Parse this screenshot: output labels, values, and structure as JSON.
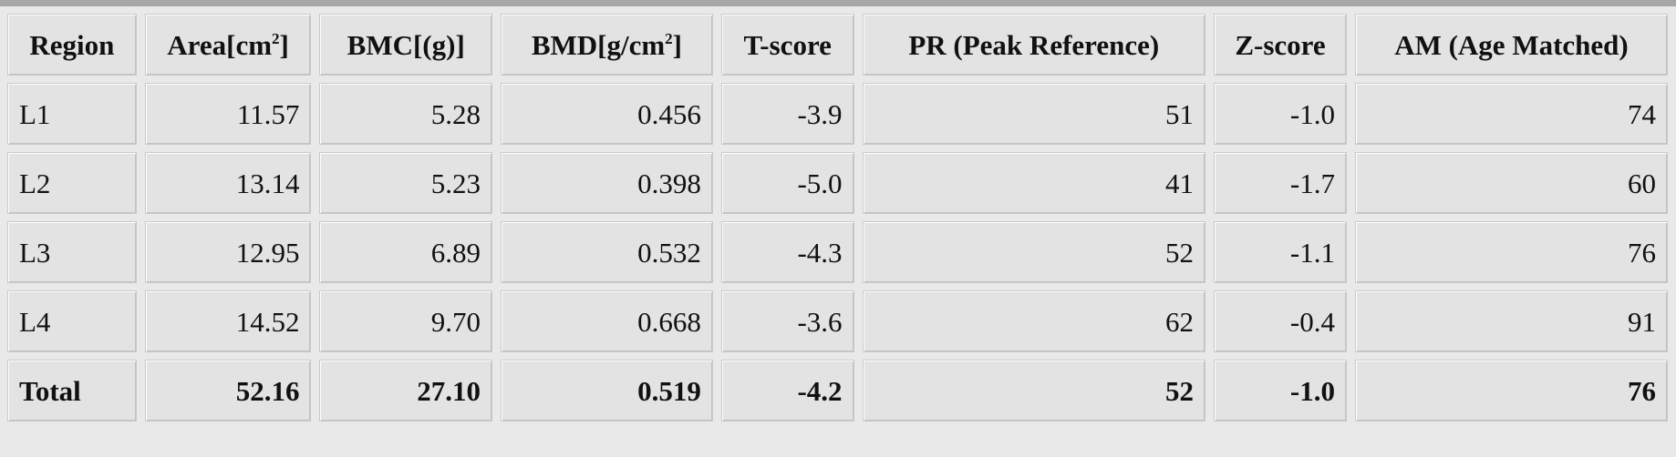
{
  "table": {
    "headers": [
      {
        "text": "Region"
      },
      {
        "text": "Area[cm",
        "sup": "2",
        "suffix": "]"
      },
      {
        "text": "BMC[(g)]"
      },
      {
        "text": "BMD[g/cm",
        "sup": "2",
        "suffix": "]"
      },
      {
        "text": "T-score"
      },
      {
        "text": "PR (Peak Reference)"
      },
      {
        "text": "Z-score"
      },
      {
        "text": "AM (Age Matched)"
      }
    ],
    "rows": [
      [
        "L1",
        "11.57",
        "5.28",
        "0.456",
        "-3.9",
        "51",
        "-1.0",
        "74"
      ],
      [
        "L2",
        "13.14",
        "5.23",
        "0.398",
        "-5.0",
        "41",
        "-1.7",
        "60"
      ],
      [
        "L3",
        "12.95",
        "6.89",
        "0.532",
        "-4.3",
        "52",
        "-1.1",
        "76"
      ],
      [
        "L4",
        "14.52",
        "9.70",
        "0.668",
        "-3.6",
        "62",
        "-0.4",
        "91"
      ],
      [
        "Total",
        "52.16",
        "27.10",
        "0.519",
        "-4.2",
        "52",
        "-1.0",
        "76"
      ]
    ]
  }
}
